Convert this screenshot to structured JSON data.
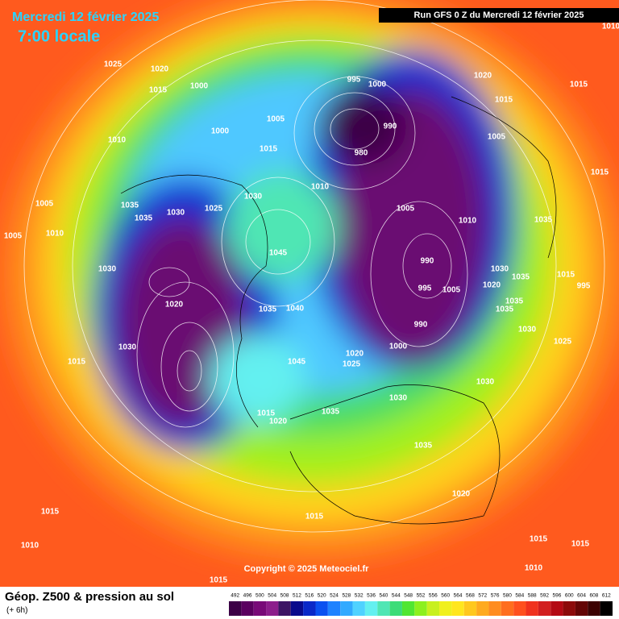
{
  "header": {
    "date": "Mercredi 12 février 2025",
    "time": "7:00 locale",
    "run": "Run GFS 0 Z du Mercredi 12 février 2025"
  },
  "map": {
    "isobar_labels": [
      "1025",
      "1020",
      "1015",
      "1000",
      "1010",
      "1000",
      "1005",
      "995",
      "1000",
      "1020",
      "1015",
      "1015",
      "980",
      "990",
      "1005",
      "1015",
      "1010",
      "1015",
      "1030",
      "1005",
      "1035",
      "1025",
      "1030",
      "1035",
      "1005",
      "1010",
      "1035",
      "1010",
      "1005",
      "1045",
      "990",
      "1030",
      "1030",
      "1035",
      "1015",
      "995",
      "1020",
      "995",
      "1005",
      "1020",
      "1035",
      "1040",
      "1035",
      "1035",
      "990",
      "1030",
      "1030",
      "1000",
      "1025",
      "1045",
      "1020",
      "1015",
      "1025",
      "1030",
      "1030",
      "1015",
      "1035",
      "1020",
      "1035",
      "1020",
      "1015",
      "1015",
      "1015",
      "1015",
      "1010",
      "1010",
      "1015",
      "1010"
    ],
    "copyright": "Copyright © 2025 Meteociel.fr"
  },
  "footer": {
    "title": "Géop. Z500 & pression au sol",
    "subtitle": "(+ 6h)",
    "scale": {
      "labels": [
        492,
        496,
        500,
        504,
        508,
        512,
        516,
        520,
        524,
        528,
        532,
        536,
        540,
        544,
        548,
        552,
        556,
        560,
        564,
        568,
        572,
        576,
        580,
        584,
        588,
        592,
        596,
        600,
        604,
        608,
        612
      ],
      "colors": [
        "#3c0046",
        "#5a005f",
        "#780a78",
        "#8c1e8c",
        "#3c1464",
        "#0a0a8c",
        "#0a28c8",
        "#0a50f0",
        "#1e82ff",
        "#32aaff",
        "#50d2ff",
        "#64f0f0",
        "#50e6b4",
        "#3cdc78",
        "#50e632",
        "#8cf01e",
        "#c8f01e",
        "#f0f01e",
        "#ffe61e",
        "#ffc81e",
        "#ffaa1e",
        "#ff8c1e",
        "#ff6e1e",
        "#ff501e",
        "#f0321e",
        "#d21e1e",
        "#b40a14",
        "#8c0a0a",
        "#640505",
        "#3c0202",
        "#000000"
      ]
    }
  }
}
